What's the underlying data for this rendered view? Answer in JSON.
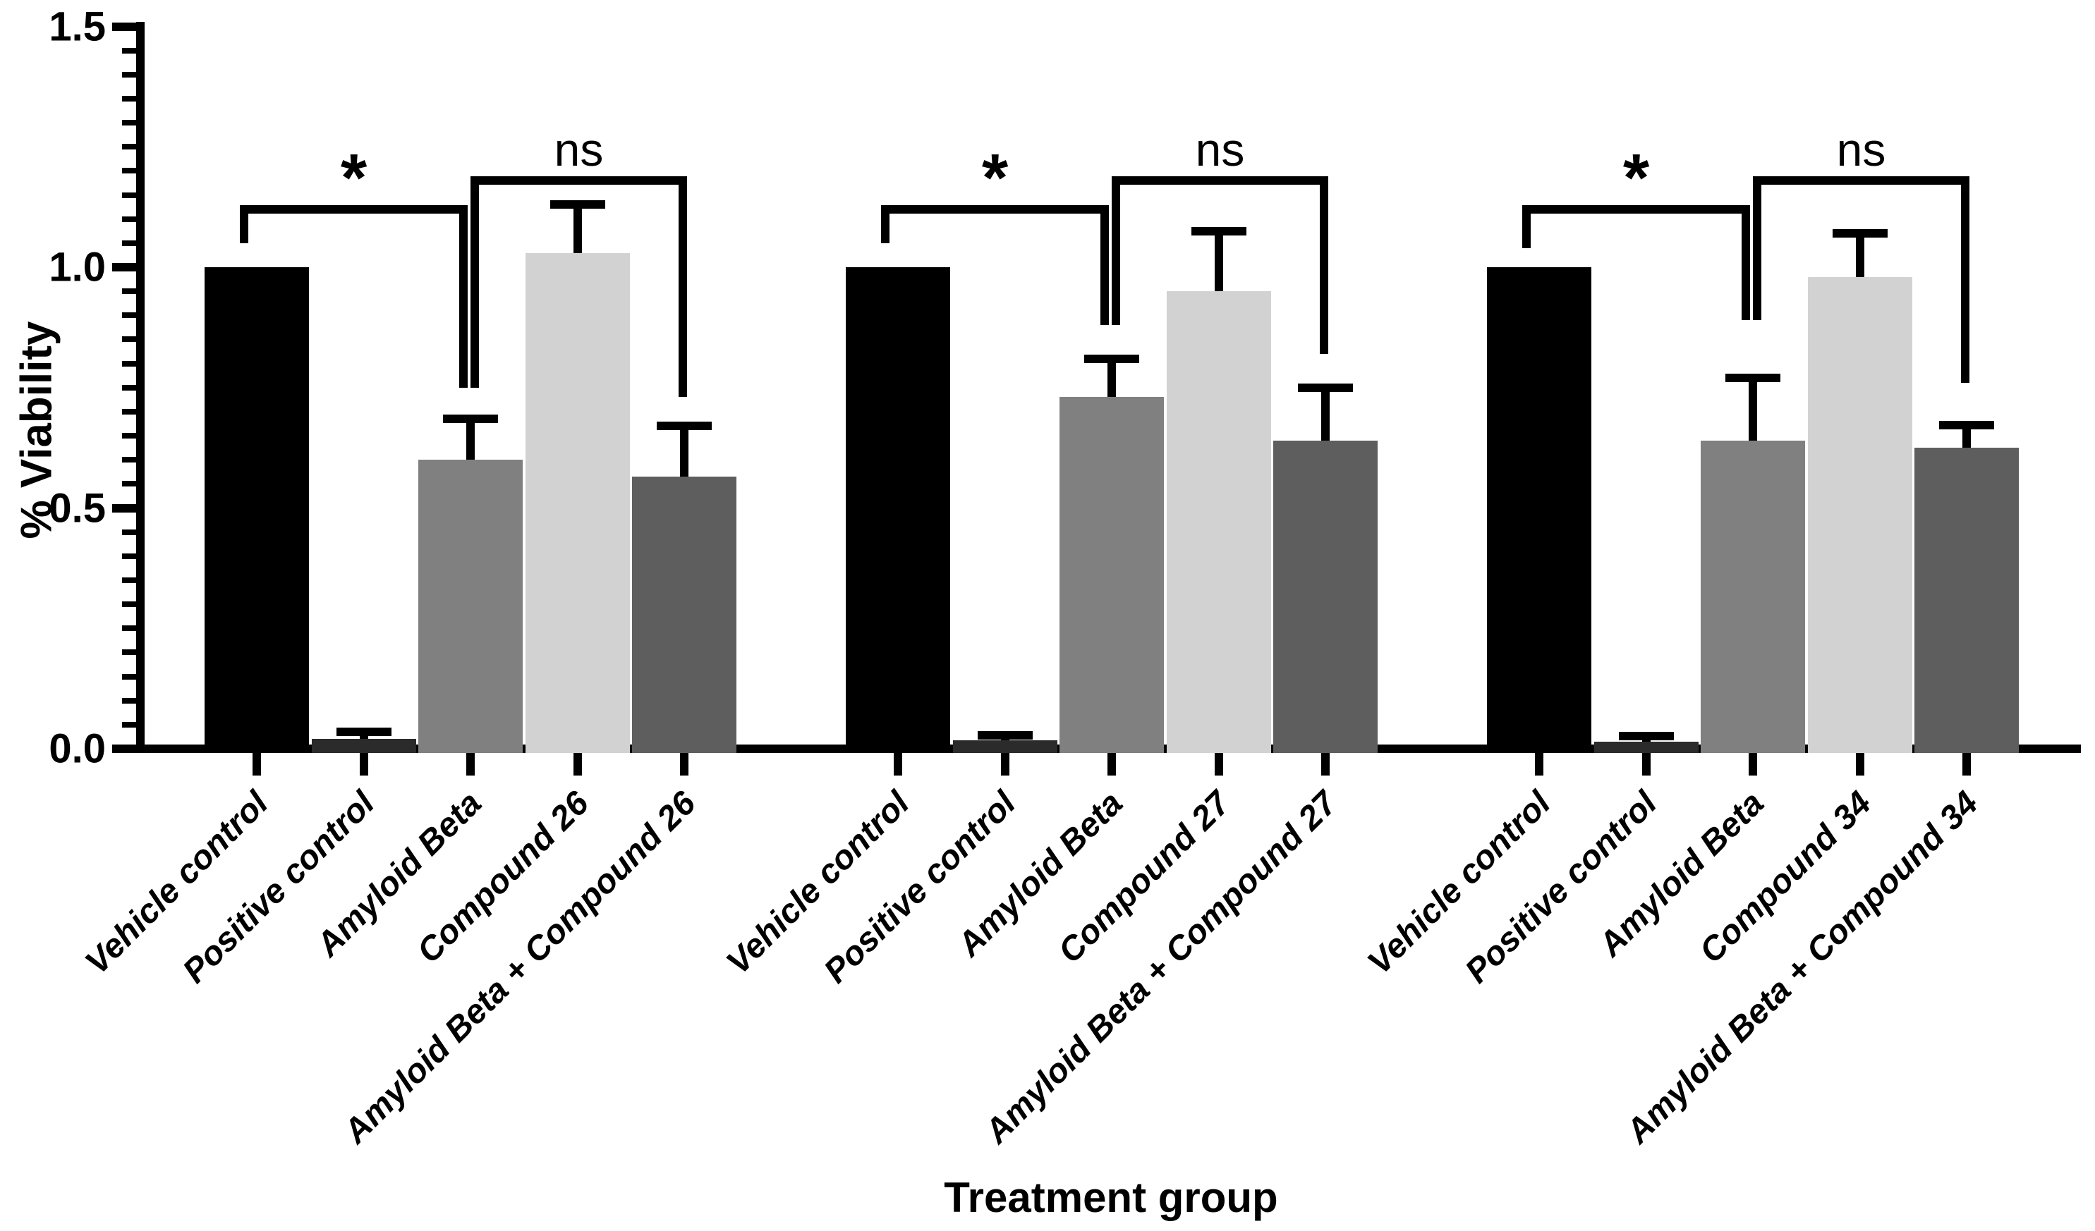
{
  "figure": {
    "background_color": "#ffffff",
    "axis_color": "#000000",
    "ylabel": "% Viability",
    "xlabel": "Treatment group",
    "significance_labels": {
      "significant": "*",
      "not_significant": "ns"
    }
  },
  "chart_data": {
    "type": "bar",
    "title": "",
    "ylabel": "% Viability",
    "xlabel": "Treatment group",
    "ylim": [
      0,
      1.5
    ],
    "y_major_ticks": [
      0,
      0.5,
      1.0,
      1.5
    ],
    "y_major_tick_labels": [
      "0.0",
      "0.5",
      "1.0",
      "1.5"
    ],
    "y_minor_tick_step": 0.05,
    "grid": false,
    "legend": false,
    "error_bars": "upward whisker with cap",
    "bar_colors": [
      "#000000",
      "#2b2b2b",
      "#808080",
      "#d2d2d2",
      "#5e5e5e"
    ],
    "groups": [
      {
        "name": "Compound 26",
        "categories": [
          "Vehicle control",
          "Positive control",
          "Amyloid Beta",
          "Compound 26",
          "Amyloid Beta + Compound 26"
        ],
        "values": [
          1.0,
          0.02,
          0.6,
          1.03,
          0.565
        ],
        "errors": [
          0,
          0.015,
          0.085,
          0.1,
          0.105
        ],
        "comparisons": [
          {
            "label": "*",
            "from_index": 0,
            "to_index": 2,
            "line_value": 1.12,
            "label_value": 1.185,
            "left_arm_bottom_value": 1.05,
            "right_arm_bottom_value": 0.75
          },
          {
            "label": "ns",
            "from_index": 2,
            "to_index": 4,
            "line_value": 1.18,
            "label_value": 1.245,
            "left_arm_bottom_value": 0.75,
            "right_arm_bottom_value": 0.73
          }
        ]
      },
      {
        "name": "Compound 27",
        "categories": [
          "Vehicle control",
          "Positive control",
          "Amyloid Beta",
          "Compound 27",
          "Amyloid Beta + Compound 27"
        ],
        "values": [
          1.0,
          0.018,
          0.73,
          0.95,
          0.64
        ],
        "errors": [
          0,
          0.01,
          0.08,
          0.125,
          0.11
        ],
        "comparisons": [
          {
            "label": "*",
            "from_index": 0,
            "to_index": 2,
            "line_value": 1.12,
            "label_value": 1.185,
            "left_arm_bottom_value": 1.05,
            "right_arm_bottom_value": 0.88
          },
          {
            "label": "ns",
            "from_index": 2,
            "to_index": 4,
            "line_value": 1.18,
            "label_value": 1.245,
            "left_arm_bottom_value": 0.88,
            "right_arm_bottom_value": 0.82
          }
        ]
      },
      {
        "name": "Compound 34",
        "categories": [
          "Vehicle control",
          "Positive control",
          "Amyloid Beta",
          "Compound 34",
          "Amyloid Beta + Compound 34"
        ],
        "values": [
          1.0,
          0.015,
          0.64,
          0.98,
          0.625
        ],
        "errors": [
          0,
          0.012,
          0.13,
          0.09,
          0.047
        ],
        "comparisons": [
          {
            "label": "*",
            "from_index": 0,
            "to_index": 2,
            "line_value": 1.12,
            "label_value": 1.185,
            "left_arm_bottom_value": 1.04,
            "right_arm_bottom_value": 0.89
          },
          {
            "label": "ns",
            "from_index": 2,
            "to_index": 4,
            "line_value": 1.18,
            "label_value": 1.245,
            "left_arm_bottom_value": 0.89,
            "right_arm_bottom_value": 0.76
          }
        ]
      }
    ]
  }
}
